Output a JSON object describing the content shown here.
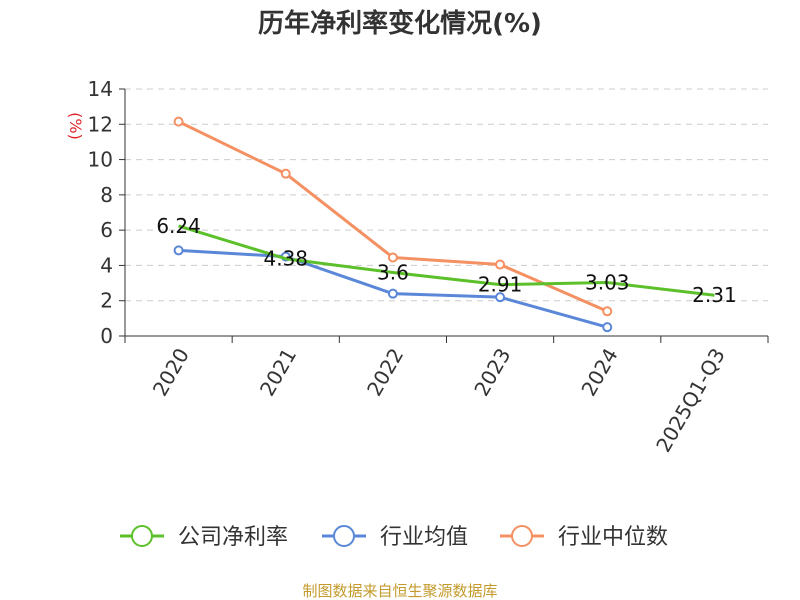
{
  "chart_data": {
    "type": "line",
    "title": "历年净利率变化情况(%)",
    "ylabel": "(%)",
    "categories": [
      "2020",
      "2021",
      "2022",
      "2023",
      "2024",
      "2025Q1-Q3"
    ],
    "ylim": [
      0,
      14
    ],
    "yticks": [
      "0",
      "2",
      "4",
      "6",
      "8",
      "10",
      "12",
      "14"
    ],
    "grid": true,
    "legend_position": "bottom",
    "series": [
      {
        "name": "公司净利率",
        "color": "#5cc02a",
        "values": [
          6.24,
          4.38,
          3.6,
          2.91,
          3.03,
          2.31
        ],
        "labels": [
          "6.24",
          "4.38",
          "3.6",
          "2.91",
          "3.03",
          "2.31"
        ],
        "markers": false
      },
      {
        "name": "行业均值",
        "color": "#5b87d8",
        "values": [
          4.85,
          4.5,
          2.4,
          2.2,
          0.5,
          null
        ],
        "markers": true
      },
      {
        "name": "行业中位数",
        "color": "#f49061",
        "values": [
          12.15,
          9.2,
          4.45,
          4.05,
          1.4,
          null
        ],
        "markers": true
      }
    ]
  },
  "source_text": "制图数据来自恒生聚源数据库"
}
